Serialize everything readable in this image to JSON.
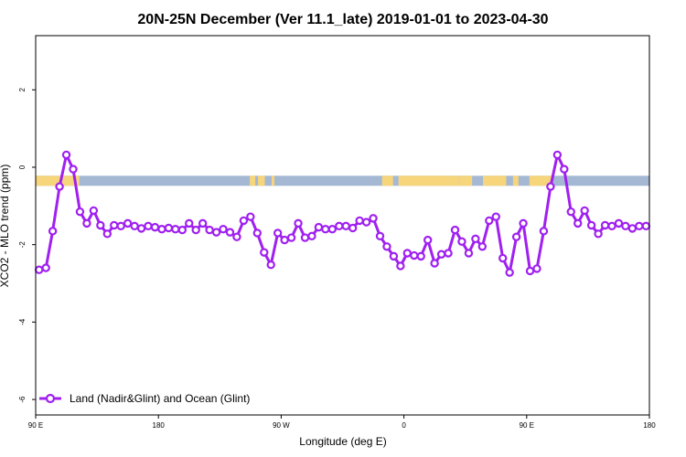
{
  "chart_data": {
    "type": "line",
    "title": "20N-25N December (Ver 11.1_late)   2019-01-01 to 2023-04-30",
    "xlabel": "Longitude (deg E)",
    "ylabel": "XCO2 - MLO trend (ppm)",
    "xlim": [
      90,
      540
    ],
    "ylim": [
      -6.4,
      3.4
    ],
    "x_ticks": [
      {
        "value": 90,
        "label": "90 E"
      },
      {
        "value": 180,
        "label": "180"
      },
      {
        "value": 270,
        "label": "90 W"
      },
      {
        "value": 360,
        "label": "0"
      },
      {
        "value": 450,
        "label": "90 E"
      },
      {
        "value": 540,
        "label": "180"
      }
    ],
    "y_ticks": [
      {
        "value": -6,
        "label": "-6"
      },
      {
        "value": -4,
        "label": "-4"
      },
      {
        "value": -2,
        "label": "-2"
      },
      {
        "value": 0,
        "label": "0"
      },
      {
        "value": 2,
        "label": "2"
      }
    ],
    "grid": false,
    "legend_position": "bottom-left",
    "land_ocean_strip": {
      "y_top": -0.22,
      "y_bottom": -0.48,
      "ocean_color": "#a4b8d4",
      "land_color": "#f7d57a"
    },
    "series": [
      {
        "name": "Land (Nadir&Glint) and Ocean (Glint)",
        "color": "#a020f0",
        "x": [
          92.5,
          97.5,
          102.5,
          107.5,
          112.5,
          117.5,
          122.5,
          127.5,
          132.5,
          137.5,
          142.5,
          147.5,
          152.5,
          157.5,
          162.5,
          167.5,
          172.5,
          177.5,
          182.5,
          187.5,
          192.5,
          197.5,
          202.5,
          207.5,
          212.5,
          217.5,
          222.5,
          227.5,
          232.5,
          237.5,
          242.5,
          247.5,
          252.5,
          257.5,
          262.5,
          267.5,
          272.5,
          277.5,
          282.5,
          287.5,
          292.5,
          297.5,
          302.5,
          307.5,
          312.5,
          317.5,
          322.5,
          327.5,
          332.5,
          337.5,
          342.5,
          347.5,
          352.5,
          357.5,
          362.5,
          367.5,
          372.5,
          377.5,
          382.5,
          387.5,
          392.5,
          397.5,
          402.5,
          407.5,
          412.5,
          417.5,
          422.5,
          427.5,
          432.5,
          437.5,
          442.5,
          447.5,
          452.5,
          457.5,
          462.5,
          467.5,
          472.5,
          477.5,
          482.5,
          487.5,
          492.5,
          497.5,
          502.5,
          507.5,
          512.5,
          517.5,
          522.5,
          527.5,
          532.5,
          537.5
        ],
        "y": [
          -2.65,
          -2.6,
          -1.65,
          -0.5,
          0.32,
          -0.05,
          -1.15,
          -1.45,
          -1.12,
          -1.5,
          -1.72,
          -1.5,
          -1.52,
          -1.45,
          -1.52,
          -1.58,
          -1.52,
          -1.55,
          -1.6,
          -1.57,
          -1.6,
          -1.62,
          -1.45,
          -1.62,
          -1.45,
          -1.62,
          -1.68,
          -1.6,
          -1.68,
          -1.8,
          -1.38,
          -1.28,
          -1.7,
          -2.2,
          -2.52,
          -1.7,
          -1.88,
          -1.82,
          -1.45,
          -1.82,
          -1.78,
          -1.55,
          -1.6,
          -1.6,
          -1.52,
          -1.52,
          -1.57,
          -1.38,
          -1.42,
          -1.32,
          -1.78,
          -2.05,
          -2.3,
          -2.55,
          -2.22,
          -2.28,
          -2.3,
          -1.88,
          -2.48,
          -2.25,
          -2.22,
          -1.62,
          -1.92,
          -2.22,
          -1.85,
          -2.05,
          -1.38,
          -1.28,
          -2.35,
          -2.72,
          -1.8,
          -1.45,
          -2.68,
          -2.62,
          -1.65,
          -0.5,
          0.32,
          -0.05,
          -1.15,
          -1.45,
          -1.12,
          -1.5,
          -1.72,
          -1.5,
          -1.52,
          -1.45,
          -1.52,
          -1.58,
          -1.52,
          -1.52
        ]
      }
    ]
  }
}
